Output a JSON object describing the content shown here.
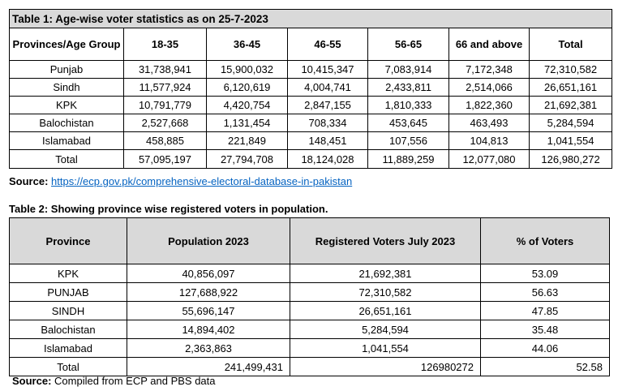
{
  "table1": {
    "caption": "Table 1: Age-wise voter statistics as on 25-7-2023",
    "headers": [
      "Provinces/Age Group",
      "18-35",
      "36-45",
      "46-55",
      "56-65",
      "66 and above",
      "Total"
    ],
    "rows": [
      [
        "Punjab",
        "31,738,941",
        "15,900,032",
        "10,415,347",
        "7,083,914",
        "7,172,348",
        "72,310,582"
      ],
      [
        "Sindh",
        "11,577,924",
        "6,120,619",
        "4,004,741",
        "2,433,811",
        "2,514,066",
        "26,651,161"
      ],
      [
        "KPK",
        "10,791,779",
        "4,420,754",
        "2,847,155",
        "1,810,333",
        "1,822,360",
        "21,692,381"
      ],
      [
        "Balochistan",
        "2,527,668",
        "1,131,454",
        "708,334",
        "453,645",
        "463,493",
        "5,284,594"
      ],
      [
        "Islamabad",
        "458,885",
        "221,849",
        "148,451",
        "107,556",
        "104,813",
        "1,041,554"
      ],
      [
        "Total",
        "57,095,197",
        "27,794,708",
        "18,124,028",
        "11,889,259",
        "12,077,080",
        "126,980,272"
      ]
    ],
    "source_label": "Source:",
    "source_link": "https://ecp.gov.pk/comprehensive-electoral-database-in-pakistan"
  },
  "table2": {
    "caption": "Table 2: Showing province wise registered voters in population.",
    "headers": [
      "Province",
      "Population 2023",
      "Registered Voters July 2023",
      "% of Voters"
    ],
    "rows": [
      [
        "KPK",
        "40,856,097",
        "21,692,381",
        "53.09"
      ],
      [
        "PUNJAB",
        "127,688,922",
        "72,310,582",
        "56.63"
      ],
      [
        "SINDH",
        "55,696,147",
        "26,651,161",
        "47.85"
      ],
      [
        "Balochistan",
        "14,894,402",
        "5,284,594",
        "35.48"
      ],
      [
        "Islamabad",
        "2,363,863",
        "1,041,554",
        "44.06"
      ]
    ],
    "total": [
      "Total",
      "241,499,431",
      "126980272",
      "52.58"
    ],
    "source_label": "Source:",
    "source_text": "Compiled from ECP and PBS data"
  }
}
